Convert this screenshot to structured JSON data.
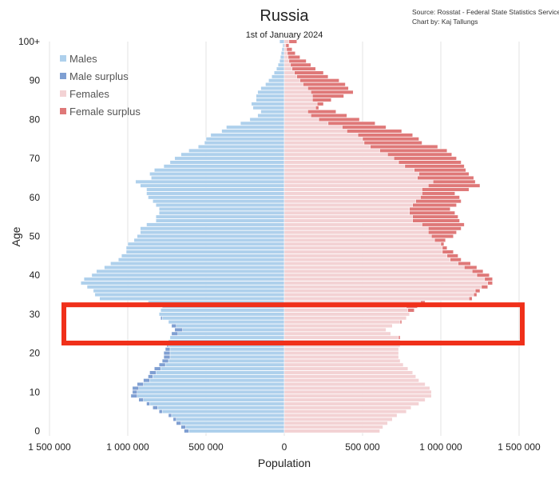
{
  "source_lines": [
    "Source: Rosstat - Federal State Statistics Service",
    "Chart by: Kaj Tallungs"
  ],
  "colors": {
    "males": "#aed0ec",
    "male_surplus": "#7f9fd2",
    "females": "#f3d2d4",
    "female_surplus": "#df7878",
    "highlight": "#f0301a",
    "grid": "#e3e3e3"
  },
  "chart_data": {
    "type": "bar",
    "orientation": "horizontal-back-to-back",
    "title": "Russia",
    "subtitle": "1st of January 2024",
    "xlabel": "Population",
    "ylabel": "Age",
    "xlim": [
      -1500000,
      1500000
    ],
    "ylim": [
      0,
      100
    ],
    "x_ticks": [
      {
        "value": -1500000,
        "label": "1 500 000"
      },
      {
        "value": -1000000,
        "label": "1 000 000"
      },
      {
        "value": -500000,
        "label": "500 000"
      },
      {
        "value": 0,
        "label": "0"
      },
      {
        "value": 500000,
        "label": "500 000"
      },
      {
        "value": 1000000,
        "label": "1 000 000"
      },
      {
        "value": 1500000,
        "label": "1 500 000"
      }
    ],
    "y_ticks": [
      {
        "value": 0,
        "label": "0"
      },
      {
        "value": 10,
        "label": "10"
      },
      {
        "value": 20,
        "label": "20"
      },
      {
        "value": 30,
        "label": "30"
      },
      {
        "value": 40,
        "label": "40"
      },
      {
        "value": 50,
        "label": "50"
      },
      {
        "value": 60,
        "label": "60"
      },
      {
        "value": 70,
        "label": "70"
      },
      {
        "value": 80,
        "label": "80"
      },
      {
        "value": 90,
        "label": "90"
      },
      {
        "value": 100,
        "label": "100+"
      }
    ],
    "legend": {
      "placement": "top-left",
      "entries": [
        {
          "label": "Males",
          "color": "#aed0ec"
        },
        {
          "label": "Male surplus",
          "color": "#7f9fd2"
        },
        {
          "label": "Females",
          "color": "#f3d2d4"
        },
        {
          "label": "Female surplus",
          "color": "#df7878"
        }
      ]
    },
    "grid": true,
    "highlight_age_range": [
      23,
      32
    ],
    "ages": [
      0,
      1,
      2,
      3,
      4,
      5,
      6,
      7,
      8,
      9,
      10,
      11,
      12,
      13,
      14,
      15,
      16,
      17,
      18,
      19,
      20,
      21,
      22,
      23,
      24,
      25,
      26,
      27,
      28,
      29,
      30,
      31,
      32,
      33,
      34,
      35,
      36,
      37,
      38,
      39,
      40,
      41,
      42,
      43,
      44,
      45,
      46,
      47,
      48,
      49,
      50,
      51,
      52,
      53,
      54,
      55,
      56,
      57,
      58,
      59,
      60,
      61,
      62,
      63,
      64,
      65,
      66,
      67,
      68,
      69,
      70,
      71,
      72,
      73,
      74,
      75,
      76,
      77,
      78,
      79,
      80,
      81,
      82,
      83,
      84,
      85,
      86,
      87,
      88,
      89,
      90,
      91,
      92,
      93,
      94,
      95,
      96,
      97,
      98,
      99,
      100
    ],
    "series": [
      {
        "name": "Males",
        "values": [
          640000,
          660000,
          690000,
          710000,
          740000,
          800000,
          840000,
          880000,
          930000,
          980000,
          970000,
          970000,
          940000,
          900000,
          870000,
          860000,
          830000,
          800000,
          780000,
          770000,
          770000,
          760000,
          750000,
          740000,
          730000,
          720000,
          700000,
          720000,
          740000,
          790000,
          800000,
          790000,
          780000,
          870000,
          1180000,
          1210000,
          1220000,
          1260000,
          1300000,
          1280000,
          1230000,
          1200000,
          1150000,
          1110000,
          1060000,
          1040000,
          1010000,
          1010000,
          1000000,
          960000,
          940000,
          920000,
          920000,
          880000,
          820000,
          820000,
          800000,
          800000,
          820000,
          840000,
          870000,
          880000,
          880000,
          920000,
          950000,
          850000,
          860000,
          830000,
          770000,
          730000,
          700000,
          660000,
          610000,
          550000,
          510000,
          500000,
          470000,
          400000,
          370000,
          280000,
          220000,
          170000,
          150000,
          200000,
          210000,
          180000,
          180000,
          170000,
          150000,
          120000,
          100000,
          80000,
          65000,
          50000,
          40000,
          30000,
          25000,
          20000,
          15000,
          10000,
          30000
        ]
      },
      {
        "name": "Females",
        "values": [
          610000,
          630000,
          660000,
          690000,
          720000,
          780000,
          810000,
          860000,
          900000,
          940000,
          940000,
          930000,
          900000,
          860000,
          840000,
          820000,
          790000,
          760000,
          740000,
          730000,
          730000,
          730000,
          740000,
          740000,
          740000,
          680000,
          650000,
          690000,
          750000,
          780000,
          800000,
          830000,
          850000,
          900000,
          1200000,
          1230000,
          1250000,
          1300000,
          1330000,
          1330000,
          1310000,
          1270000,
          1230000,
          1190000,
          1130000,
          1110000,
          1080000,
          1040000,
          1020000,
          1030000,
          1080000,
          1100000,
          1130000,
          1150000,
          1120000,
          1110000,
          1090000,
          1060000,
          1100000,
          1130000,
          1120000,
          1090000,
          1180000,
          1250000,
          1220000,
          1210000,
          1180000,
          1160000,
          1150000,
          1130000,
          1100000,
          1070000,
          1040000,
          980000,
          880000,
          860000,
          820000,
          750000,
          650000,
          580000,
          480000,
          400000,
          330000,
          220000,
          250000,
          300000,
          380000,
          440000,
          410000,
          390000,
          350000,
          280000,
          250000,
          200000,
          170000,
          140000,
          100000,
          70000,
          50000,
          30000,
          80000
        ]
      }
    ]
  }
}
